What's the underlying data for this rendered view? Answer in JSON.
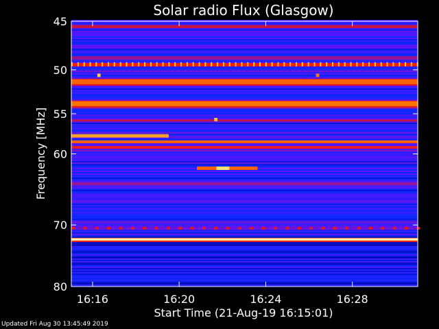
{
  "chart_data": {
    "type": "heatmap",
    "title": "Solar radio Flux (Glasgow)",
    "xlabel": "Start Time (21-Aug-19 16:15:01)",
    "ylabel": "Frequency [MHz]",
    "x_unit": "minutes after 16:15:01",
    "xlim": [
      0,
      16.0
    ],
    "x_ticks": [
      {
        "label": "16:16",
        "value": 0.98
      },
      {
        "label": "16:20",
        "value": 4.98
      },
      {
        "label": "16:24",
        "value": 8.98
      },
      {
        "label": "16:28",
        "value": 12.98
      }
    ],
    "y_scale": "log",
    "ylim": [
      45,
      80
    ],
    "y_ticks": [
      45,
      50,
      55,
      60,
      70,
      80
    ],
    "y_axis_inverted": true,
    "colormap": [
      "#000000",
      "#0000a0",
      "#0a28ff",
      "#5a14ff",
      "#c81440",
      "#ff2000",
      "#ff7800",
      "#ffdc60",
      "#ffffe0"
    ],
    "background_intensity": 0.3,
    "bands": [
      {
        "freq": 45.0,
        "width": 0.25,
        "intensity": 0.35
      },
      {
        "freq": 45.5,
        "width": 0.25,
        "intensity": 0.5
      },
      {
        "freq": 48.7,
        "width": 0.3,
        "intensity": 0.45
      },
      {
        "freq": 49.4,
        "width": 0.25,
        "intensity": 0.62
      },
      {
        "freq": 51.3,
        "width": 0.5,
        "intensity": 0.72
      },
      {
        "freq": 53.8,
        "width": 0.55,
        "intensity": 0.74
      },
      {
        "freq": 55.8,
        "width": 0.2,
        "intensity": 0.5
      },
      {
        "freq": 58.4,
        "width": 0.25,
        "intensity": 0.72
      },
      {
        "freq": 59.1,
        "width": 0.2,
        "intensity": 0.58
      },
      {
        "freq": 60.0,
        "width": 0.3,
        "intensity": 0.32
      },
      {
        "freq": 64.0,
        "width": 0.3,
        "intensity": 0.45
      },
      {
        "freq": 70.5,
        "width": 0.25,
        "intensity": 0.4
      },
      {
        "freq": 72.2,
        "width": 0.3,
        "intensity": 0.95
      }
    ],
    "bursts": [
      {
        "freq": 57.7,
        "t_start": 0.0,
        "t_end": 4.5,
        "intensity": 0.8
      },
      {
        "freq": 61.9,
        "t_start": 5.8,
        "t_end": 8.6,
        "intensity": 0.72
      },
      {
        "freq": 61.9,
        "t_start": 6.7,
        "t_end": 7.3,
        "intensity": 0.9
      },
      {
        "freq": 55.7,
        "t_start": 6.6,
        "t_end": 6.75,
        "intensity": 0.85
      },
      {
        "freq": 50.6,
        "t_start": 1.2,
        "t_end": 1.35,
        "intensity": 0.85
      },
      {
        "freq": 50.6,
        "t_start": 11.3,
        "t_end": 11.45,
        "intensity": 0.75
      }
    ],
    "dotted_band": {
      "freq": 49.4,
      "period_min": 0.28,
      "intensity": 0.85
    },
    "dashed_band": {
      "freq": 70.5,
      "period_min": 0.55,
      "intensity": 0.55
    }
  },
  "footer": {
    "updated": "Updated Fri Aug 30 13:45:49 2019"
  }
}
